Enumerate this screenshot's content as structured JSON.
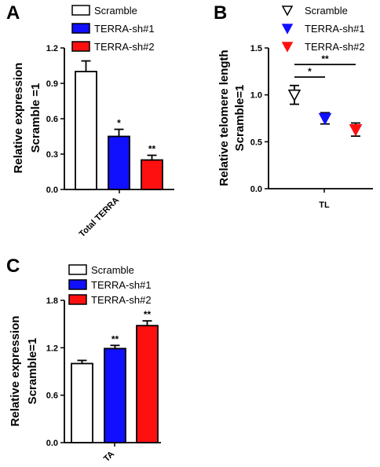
{
  "chart_data": [
    {
      "panel": "A",
      "type": "bar",
      "categories": [
        "Total TERRA"
      ],
      "ylabel": [
        "Relative expression",
        "Scramble =1"
      ],
      "ylim": [
        0,
        1.2
      ],
      "yticks": [
        "0.0",
        "0.3",
        "0.6",
        "0.9",
        "1.2"
      ],
      "series": [
        {
          "name": "Scramble",
          "values": [
            1.0
          ],
          "error": [
            0.09
          ],
          "color": "#ffffff",
          "sig": ""
        },
        {
          "name": "TERRA-sh#1",
          "values": [
            0.45
          ],
          "error": [
            0.06
          ],
          "color": "#1010ff",
          "sig": "*"
        },
        {
          "name": "TERRA-sh#2",
          "values": [
            0.25
          ],
          "error": [
            0.04
          ],
          "color": "#ff1010",
          "sig": "**"
        }
      ],
      "legend": "top-right"
    },
    {
      "panel": "B",
      "type": "scatter",
      "categories": [
        "TL"
      ],
      "ylabel": [
        "Relative telomere length",
        "Scramble=1"
      ],
      "ylim": [
        0,
        1.5
      ],
      "yticks": [
        "0.0",
        "0.5",
        "1.0",
        "1.5"
      ],
      "series": [
        {
          "name": "Scramble",
          "values": [
            1.0
          ],
          "error": [
            0.1
          ],
          "color": "#ffffff",
          "marker": "open-triangle-down"
        },
        {
          "name": "TERRA-sh#1",
          "values": [
            0.75
          ],
          "error": [
            0.06
          ],
          "color": "#1010ff",
          "marker": "triangle-down"
        },
        {
          "name": "TERRA-sh#2",
          "values": [
            0.63
          ],
          "error": [
            0.07
          ],
          "color": "#ff1010",
          "marker": "triangle-down"
        }
      ],
      "comparisons": [
        {
          "from": "Scramble",
          "to": "TERRA-sh#1",
          "label": "*"
        },
        {
          "from": "Scramble",
          "to": "TERRA-sh#2",
          "label": "**"
        }
      ],
      "legend": "top-right"
    },
    {
      "panel": "C",
      "type": "bar",
      "categories": [
        "TA"
      ],
      "ylabel": [
        "Relative expression",
        "Scramble=1"
      ],
      "ylim": [
        0,
        1.8
      ],
      "yticks": [
        "0.0",
        "0.6",
        "1.2",
        "1.8"
      ],
      "series": [
        {
          "name": "Scramble",
          "values": [
            1.0
          ],
          "error": [
            0.04
          ],
          "color": "#ffffff",
          "sig": ""
        },
        {
          "name": "TERRA-sh#1",
          "values": [
            1.19
          ],
          "error": [
            0.04
          ],
          "color": "#1010ff",
          "sig": "**"
        },
        {
          "name": "TERRA-sh#2",
          "values": [
            1.48
          ],
          "error": [
            0.06
          ],
          "color": "#ff1010",
          "sig": "**"
        }
      ],
      "legend": "top"
    }
  ]
}
